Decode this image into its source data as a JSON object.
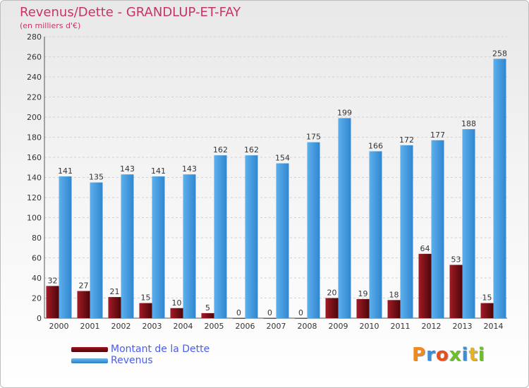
{
  "title": "Revenus/Dette - GRANDLUP-ET-FAY",
  "subtitle": "(en milliers d'€)",
  "colors": {
    "dette": "#7a0c14",
    "revenus": "#3d9be0",
    "title": "#c8336a",
    "legend_text": "#4b5cf0"
  },
  "legend": [
    {
      "label": "Montant de la Dette",
      "color": "#7a0c14"
    },
    {
      "label": "Revenus",
      "color": "#3d9be0"
    }
  ],
  "logo": "Proxiti",
  "chart_data": {
    "type": "bar",
    "title": "Revenus/Dette - GRANDLUP-ET-FAY",
    "subtitle": "(en milliers d'€)",
    "categories": [
      "2000",
      "2001",
      "2002",
      "2003",
      "2004",
      "2005",
      "2006",
      "2007",
      "2008",
      "2009",
      "2010",
      "2011",
      "2012",
      "2013",
      "2014"
    ],
    "series": [
      {
        "name": "Montant de la Dette",
        "values": [
          32,
          27,
          21,
          15,
          10,
          5,
          0,
          0,
          0,
          20,
          19,
          18,
          64,
          53,
          15
        ]
      },
      {
        "name": "Revenus",
        "values": [
          141,
          135,
          143,
          141,
          143,
          162,
          162,
          154,
          175,
          199,
          166,
          172,
          177,
          188,
          258
        ]
      }
    ],
    "ylim": [
      0,
      280
    ],
    "yticks": [
      0,
      20,
      40,
      60,
      80,
      100,
      120,
      140,
      160,
      180,
      200,
      220,
      240,
      260,
      280
    ],
    "grid": true,
    "legend_position": "bottom-left"
  }
}
